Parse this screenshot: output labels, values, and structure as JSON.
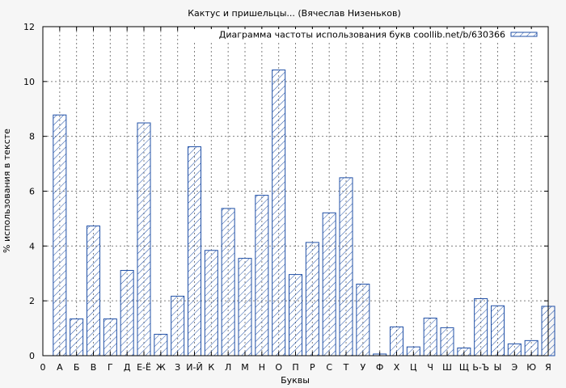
{
  "chart_data": {
    "type": "bar",
    "title": "Кактус и пришельцы... (Вячеслав Низеньков)",
    "xlabel": "Буквы",
    "ylabel": "% использования в тексте",
    "legend_label": "Диаграмма частоты использования букв coollib.net/b/630366",
    "legend_position": "top-right",
    "grid": true,
    "ylim": [
      0,
      12
    ],
    "yticks": [
      0,
      2,
      4,
      6,
      8,
      10,
      12
    ],
    "x_start_label": "0",
    "categories": [
      "А",
      "Б",
      "В",
      "Г",
      "Д",
      "Е-Ё",
      "Ж",
      "З",
      "И-Й",
      "К",
      "Л",
      "М",
      "Н",
      "О",
      "П",
      "Р",
      "С",
      "Т",
      "У",
      "Ф",
      "Х",
      "Ц",
      "Ч",
      "Ш",
      "Щ",
      "Ь-Ъ",
      "Ы",
      "Э",
      "Ю",
      "Я"
    ],
    "values": [
      8.78,
      1.34,
      4.73,
      1.34,
      3.11,
      8.49,
      0.78,
      2.17,
      7.62,
      3.84,
      5.37,
      3.55,
      5.85,
      10.42,
      2.96,
      4.13,
      5.21,
      6.49,
      2.61,
      0.06,
      1.05,
      0.32,
      1.37,
      1.02,
      0.28,
      2.08,
      1.82,
      0.43,
      0.55,
      1.8
    ],
    "colors": {
      "bar_stroke": "#1f4fa6",
      "hatch": "#1f4fa6",
      "grid": "#808080",
      "background": "#ffffff",
      "page": "#f6f6f6"
    }
  }
}
